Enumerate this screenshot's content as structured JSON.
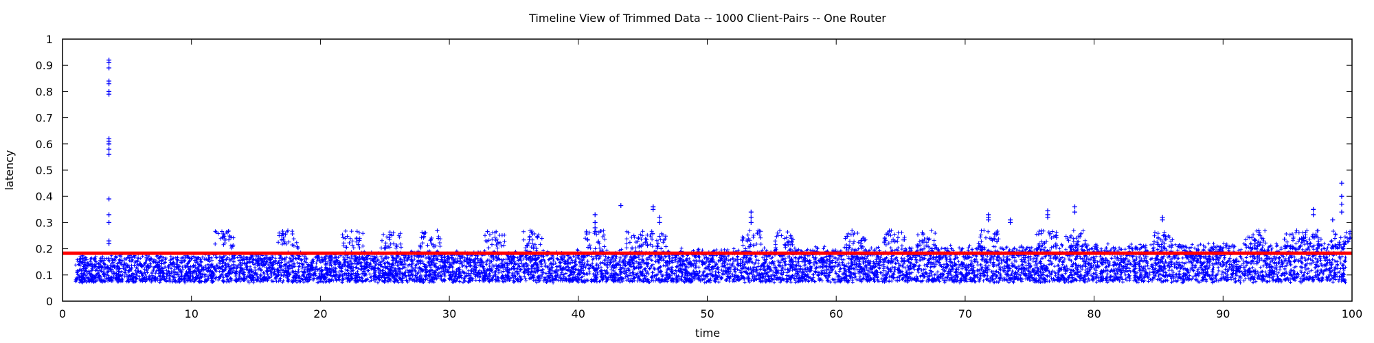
{
  "chart_data": {
    "type": "scatter",
    "title": "Timeline View of Trimmed Data -- 1000 Client-Pairs -- One Router",
    "xlabel": "time",
    "ylabel": "latency",
    "xlim": [
      0,
      100
    ],
    "ylim": [
      0,
      1
    ],
    "xticks": [
      0,
      10,
      20,
      30,
      40,
      50,
      60,
      70,
      80,
      90,
      100
    ],
    "yticks": [
      0,
      0.1,
      0.2,
      0.3,
      0.4,
      0.5,
      0.6,
      0.7,
      0.8,
      0.9,
      1
    ],
    "ytick_labels": [
      "0",
      "0.1",
      "0.2",
      "0.3",
      "0.4",
      "0.5",
      "0.6",
      "0.7",
      "0.8",
      "0.9",
      "1"
    ],
    "grid": false,
    "marker": "+",
    "series_color": "#0000ff",
    "reference_line": {
      "y": 0.183,
      "color": "#ff0000"
    },
    "dense_band": {
      "x_range": [
        1,
        99.5
      ],
      "y_low": [
        0.07,
        0.08
      ],
      "y_high_start": 0.16,
      "y_high_end": 0.21
    },
    "spikes": [
      {
        "x": 3.6,
        "y": [
          0.92,
          0.91,
          0.89,
          0.84,
          0.83,
          0.8,
          0.79,
          0.62,
          0.61,
          0.6,
          0.58,
          0.56,
          0.39,
          0.33,
          0.3,
          0.23,
          0.22
        ]
      },
      {
        "x": 41.3,
        "y": [
          0.33,
          0.3,
          0.28
        ]
      },
      {
        "x": 43.3,
        "y": [
          0.365
        ]
      },
      {
        "x": 45.8,
        "y": [
          0.36,
          0.36,
          0.35
        ]
      },
      {
        "x": 46.3,
        "y": [
          0.32,
          0.3
        ]
      },
      {
        "x": 53.4,
        "y": [
          0.34,
          0.32,
          0.3
        ]
      },
      {
        "x": 71.8,
        "y": [
          0.33,
          0.32,
          0.31
        ]
      },
      {
        "x": 73.5,
        "y": [
          0.31,
          0.3
        ]
      },
      {
        "x": 76.4,
        "y": [
          0.345,
          0.33,
          0.32
        ]
      },
      {
        "x": 78.5,
        "y": [
          0.36,
          0.34
        ]
      },
      {
        "x": 85.3,
        "y": [
          0.32,
          0.31
        ]
      },
      {
        "x": 97.0,
        "y": [
          0.35,
          0.33
        ]
      },
      {
        "x": 98.5,
        "y": [
          0.31
        ]
      },
      {
        "x": 99.2,
        "y": [
          0.45,
          0.4,
          0.37,
          0.34
        ]
      }
    ],
    "bump_centers": [
      12.5,
      17.5,
      22.5,
      25.5,
      28.5,
      33.5,
      36.5,
      41.3,
      44.5,
      46.0,
      53.5,
      56.0,
      61.5,
      64.5,
      67.0,
      71.8,
      76.3,
      78.6,
      85.3,
      92.5,
      95.5,
      97.0,
      99.2
    ]
  }
}
